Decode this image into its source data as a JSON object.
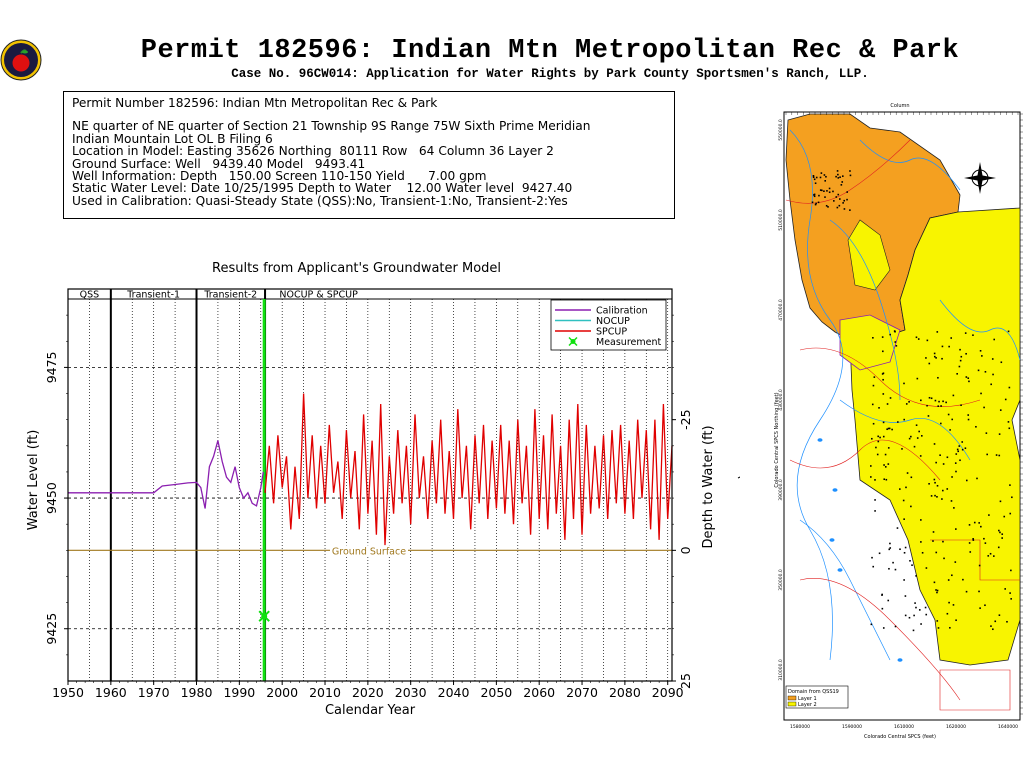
{
  "header": {
    "title": "Permit 182596:  Indian Mtn Metropolitan Rec & Park",
    "subtitle": "Case No. 96CW014: Application for Water Rights by Park County Sportsmen's Ranch, LLP."
  },
  "info": {
    "line1": "Permit Number 182596: Indian Mtn Metropolitan Rec & Park",
    "line2": "NE quarter of NE quarter of Section 21 Township 9S Range 75W Sixth Prime Meridian",
    "line3": "Indian Mountain Lot OL B Filing 6",
    "line4": "Location in Model: Easting 35626 Northing  80111 Row   64 Column 36 Layer 2",
    "line5": "Ground Surface: Well   9439.40 Model   9493.41",
    "line6": "Well Information: Depth   150.00 Screen 110-150 Yield      7.00 gpm",
    "line7": "Static Water Level: Date 10/25/1995 Depth to Water    12.00 Water level  9427.40",
    "line8": "Used in Calibration: Quasi-Steady State (QSS):No, Transient-1:No, Transient-2:Yes"
  },
  "colors": {
    "calibration": "#8b1fb0",
    "nocup": "#30c0c0",
    "spcup": "#e00000",
    "measurement": "#10e010",
    "ground": "#a0781e",
    "map_orange": "#f4a020",
    "map_yellow": "#f8f400"
  },
  "chart_data": {
    "type": "line",
    "title": "Results from Applicant's Groundwater Model",
    "xlabel": "Calendar Year",
    "ylabel": "Water Level (ft)",
    "y2label": "Depth to Water (ft)",
    "xlim": [
      1950,
      2091
    ],
    "ylim": [
      9415,
      9490
    ],
    "grid": true,
    "legend_position": "top-right",
    "xticks": [
      "1950",
      "1960",
      "1970",
      "1980",
      "1990",
      "2000",
      "2010",
      "2020",
      "2030",
      "2040",
      "2050",
      "2060",
      "2070",
      "2080",
      "2090"
    ],
    "yticks": [
      "9425",
      "9450",
      "9475"
    ],
    "y2ticks": [
      "-25",
      "0",
      "25"
    ],
    "periods": [
      {
        "label": "QSS",
        "start": 1950,
        "end": 1960
      },
      {
        "label": "Transient-1",
        "start": 1960,
        "end": 1980
      },
      {
        "label": "Transient-2",
        "start": 1980,
        "end": 1996
      },
      {
        "label": "NOCUP  &  SPCUP",
        "start": 1996,
        "end": 2091
      }
    ],
    "ground_surface": {
      "label": "Ground Surface",
      "value": 9440
    },
    "measurement": {
      "year": 1995.8,
      "value": 9427.4
    },
    "series": [
      {
        "name": "Calibration",
        "x": [
          1950,
          1955,
          1960,
          1965,
          1970,
          1972,
          1975,
          1978,
          1980,
          1981,
          1982,
          1983,
          1984,
          1985,
          1986,
          1987,
          1988,
          1989,
          1990,
          1991,
          1992,
          1993,
          1994,
          1995,
          1995.6
        ],
        "y": [
          9451,
          9451,
          9451,
          9451,
          9451,
          9452.3,
          9452.6,
          9452.9,
          9453,
          9452,
          9448,
          9456,
          9458,
          9461,
          9457,
          9454,
          9453,
          9456,
          9452,
          9450,
          9451,
          9449,
          9448.5,
          9452,
          9455
        ]
      },
      {
        "name": "NOCUP",
        "x": [
          1996,
          2000,
          2040,
          2090
        ],
        "y": [
          9455,
          9455,
          9455,
          9455
        ]
      },
      {
        "name": "SPCUP",
        "x": [
          1996,
          1997,
          1998,
          1999,
          2000,
          2001,
          2002,
          2003,
          2004,
          2005,
          2006,
          2007,
          2008,
          2009,
          2010,
          2011,
          2012,
          2013,
          2014,
          2015,
          2016,
          2017,
          2018,
          2019,
          2020,
          2021,
          2022,
          2023,
          2024,
          2025,
          2026,
          2027,
          2028,
          2029,
          2030,
          2031,
          2032,
          2033,
          2034,
          2035,
          2036,
          2037,
          2038,
          2039,
          2040,
          2041,
          2042,
          2043,
          2044,
          2045,
          2046,
          2047,
          2048,
          2049,
          2050,
          2051,
          2052,
          2053,
          2054,
          2055,
          2056,
          2057,
          2058,
          2059,
          2060,
          2061,
          2062,
          2063,
          2064,
          2065,
          2066,
          2067,
          2068,
          2069,
          2070,
          2071,
          2072,
          2073,
          2074,
          2075,
          2076,
          2077,
          2078,
          2079,
          2080,
          2081,
          2082,
          2083,
          2084,
          2085,
          2086,
          2087,
          2088,
          2089,
          2090,
          2091
        ],
        "y": [
          9451,
          9460,
          9449,
          9462,
          9452,
          9458,
          9444,
          9456,
          9446,
          9470,
          9450,
          9462,
          9448,
          9460,
          9449,
          9464,
          9451,
          9457,
          9446,
          9463,
          9450,
          9459,
          9444,
          9466,
          9447,
          9461,
          9443,
          9468,
          9441,
          9458,
          9447,
          9463,
          9449,
          9460,
          9445,
          9466,
          9450,
          9458,
          9446,
          9461,
          9449,
          9465,
          9447,
          9459,
          9446,
          9467,
          9450,
          9460,
          9444,
          9462,
          9449,
          9464,
          9446,
          9461,
          9448,
          9464,
          9447,
          9461,
          9445,
          9465,
          9449,
          9460,
          9443,
          9467,
          9446,
          9462,
          9444,
          9466,
          9447,
          9460,
          9442,
          9465,
          9446,
          9468,
          9443,
          9464,
          9447,
          9460,
          9448,
          9462,
          9446,
          9463,
          9449,
          9464,
          9447,
          9461,
          9446,
          9465,
          9450,
          9463,
          9444,
          9465,
          9442,
          9468,
          9446,
          9460
        ]
      }
    ]
  },
  "map": {
    "x_axis_label": "Column",
    "y_axis_label": "Colorado Central SPCS Northing (feet)",
    "bottom_label": "Colorado Central SPCS (feet)",
    "legend_title": "Domain from QSS19",
    "legend_layer1": "Layer 1",
    "legend_layer2": "Layer 2",
    "bottom_ticks": [
      "1580000",
      "1590000",
      "1610000",
      "1620000",
      "1640000"
    ],
    "left_ticks": [
      "550000.0",
      "510000.0",
      "470000.0",
      "430000.0",
      "390000.0",
      "350000.0",
      "310000.0"
    ]
  }
}
